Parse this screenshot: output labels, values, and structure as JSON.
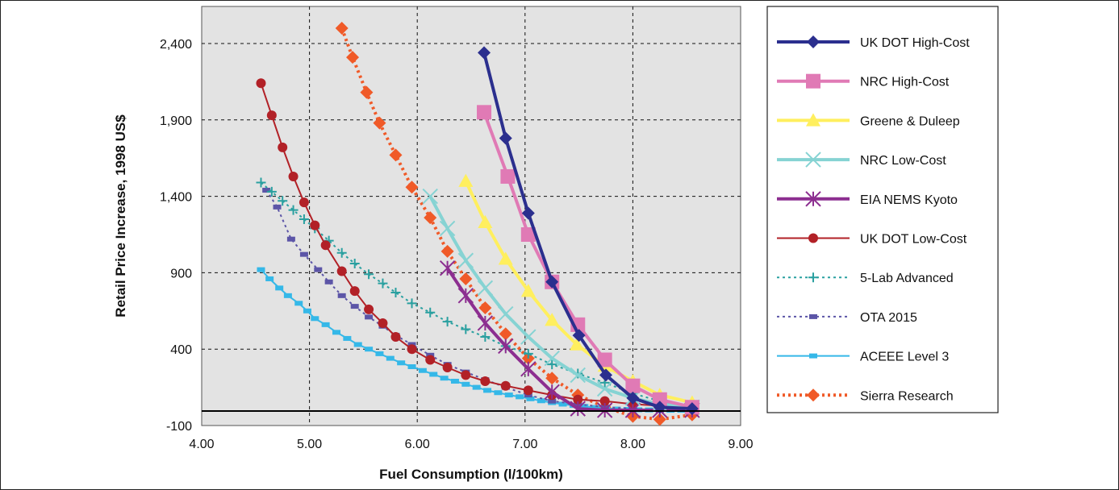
{
  "chart_data": {
    "type": "line",
    "title": "",
    "xlabel": "Fuel Consumption (l/100km)",
    "ylabel": "Retail Price Increase, 1998 US$",
    "xlim": [
      4.0,
      9.0
    ],
    "ylim": [
      -100,
      2400
    ],
    "x_ticks": [
      "4.00",
      "5.00",
      "6.00",
      "7.00",
      "8.00",
      "9.00"
    ],
    "y_ticks": [
      "-100",
      "400",
      "900",
      "1,400",
      "1,900",
      "2,400"
    ],
    "x_tick_values": [
      4,
      5,
      6,
      7,
      8,
      9
    ],
    "y_tick_values": [
      -100,
      400,
      900,
      1400,
      1900,
      2400
    ],
    "grid": true,
    "plot_background": "#e3e3e3",
    "legend_position": "right",
    "series": [
      {
        "name": "UK DOT High-Cost",
        "color": "#2b2f8e",
        "marker": "diamond",
        "dash": "solid",
        "x": [
          6.62,
          6.82,
          7.03,
          7.25,
          7.5,
          7.75,
          8.0,
          8.25,
          8.55
        ],
        "y": [
          2340,
          1780,
          1290,
          840,
          490,
          230,
          80,
          20,
          10
        ]
      },
      {
        "name": "NRC High-Cost",
        "color": "#e07ab5",
        "marker": "square",
        "dash": "solid",
        "x": [
          6.62,
          6.84,
          7.03,
          7.25,
          7.49,
          7.74,
          8.0,
          8.25,
          8.55
        ],
        "y": [
          1950,
          1530,
          1150,
          840,
          560,
          330,
          160,
          70,
          20
        ]
      },
      {
        "name": "Greene & Duleep",
        "color": "#ffef5e",
        "marker": "triangle",
        "dash": "solid",
        "x": [
          6.45,
          6.63,
          6.82,
          7.03,
          7.25,
          7.48,
          7.74,
          8.0,
          8.25,
          8.55
        ],
        "y": [
          1500,
          1230,
          990,
          780,
          590,
          430,
          290,
          190,
          100,
          50
        ]
      },
      {
        "name": "NRC Low-Cost",
        "color": "#86d3d3",
        "marker": "x",
        "dash": "solid",
        "x": [
          6.12,
          6.28,
          6.45,
          6.63,
          6.82,
          7.03,
          7.25,
          7.49,
          7.74,
          8.0,
          8.25,
          8.55
        ],
        "y": [
          1400,
          1190,
          980,
          800,
          630,
          480,
          340,
          230,
          140,
          80,
          40,
          20
        ]
      },
      {
        "name": "EIA NEMS Kyoto",
        "color": "#8c2e90",
        "marker": "asterisk",
        "dash": "solid",
        "x": [
          6.28,
          6.45,
          6.63,
          6.82,
          7.03,
          7.25,
          7.49,
          7.74,
          8.0,
          8.25,
          8.55
        ],
        "y": [
          930,
          750,
          570,
          420,
          270,
          120,
          10,
          0,
          0,
          0,
          0
        ]
      },
      {
        "name": "UK DOT Low-Cost",
        "color": "#b22127",
        "marker": "circle",
        "dash": "solid",
        "x": [
          4.55,
          4.65,
          4.75,
          4.85,
          4.95,
          5.05,
          5.15,
          5.3,
          5.42,
          5.55,
          5.68,
          5.8,
          5.95,
          6.12,
          6.28,
          6.45,
          6.63,
          6.82,
          7.03,
          7.25,
          7.49,
          7.74,
          8.0,
          8.25,
          8.55
        ],
        "y": [
          2140,
          1930,
          1720,
          1530,
          1360,
          1210,
          1080,
          910,
          780,
          660,
          570,
          480,
          400,
          330,
          280,
          230,
          190,
          160,
          130,
          100,
          70,
          60,
          40,
          30,
          20
        ]
      },
      {
        "name": "5-Lab Advanced",
        "color": "#2aa0a0",
        "marker": "plus",
        "dash": "dot",
        "x": [
          4.55,
          4.65,
          4.75,
          4.85,
          4.95,
          5.05,
          5.18,
          5.3,
          5.42,
          5.55,
          5.68,
          5.8,
          5.95,
          6.12,
          6.28,
          6.45,
          6.63,
          6.82,
          7.03,
          7.25,
          7.49,
          7.74,
          8.0,
          8.25,
          8.55
        ],
        "y": [
          1490,
          1430,
          1370,
          1310,
          1250,
          1190,
          1110,
          1030,
          960,
          890,
          830,
          770,
          700,
          640,
          580,
          530,
          480,
          420,
          370,
          300,
          240,
          180,
          110,
          60,
          10
        ]
      },
      {
        "name": "OTA 2015",
        "color": "#5c55a7",
        "marker": "smallsquare",
        "dash": "dot",
        "x": [
          4.6,
          4.7,
          4.83,
          4.95,
          5.08,
          5.18,
          5.3,
          5.42,
          5.55,
          5.68,
          5.8,
          5.95,
          6.12,
          6.28,
          6.45,
          6.63,
          6.82,
          7.03,
          7.25,
          7.49,
          7.74,
          8.0,
          8.25,
          8.55
        ],
        "y": [
          1440,
          1330,
          1120,
          1020,
          920,
          840,
          750,
          680,
          610,
          550,
          490,
          430,
          360,
          300,
          250,
          200,
          150,
          100,
          60,
          40,
          20,
          10,
          0,
          0
        ]
      },
      {
        "name": "ACEEE Level 3",
        "color": "#35b8e8",
        "marker": "smallsquare",
        "dash": "solid",
        "x": [
          4.55,
          4.63,
          4.72,
          4.8,
          4.9,
          4.98,
          5.05,
          5.15,
          5.25,
          5.35,
          5.45,
          5.55,
          5.65,
          5.75,
          5.85,
          5.95,
          6.05,
          6.15,
          6.25,
          6.35,
          6.45,
          6.55,
          6.65,
          6.75,
          6.85,
          6.95,
          7.05,
          7.15,
          7.25,
          7.35,
          7.45,
          7.55,
          7.65,
          7.75,
          7.85,
          7.95,
          8.05,
          8.15,
          8.25,
          8.35,
          8.45,
          8.55
        ],
        "y": [
          920,
          860,
          800,
          750,
          700,
          650,
          600,
          560,
          510,
          470,
          430,
          400,
          370,
          340,
          310,
          285,
          260,
          235,
          210,
          190,
          170,
          150,
          130,
          115,
          100,
          88,
          75,
          62,
          50,
          40,
          32,
          25,
          18,
          12,
          8,
          5,
          3,
          2,
          1,
          0,
          0,
          0
        ]
      },
      {
        "name": "Sierra Research",
        "color": "#f05a28",
        "marker": "diamond",
        "dash": "dot",
        "x": [
          5.3,
          5.4,
          5.53,
          5.65,
          5.8,
          5.95,
          6.12,
          6.28,
          6.45,
          6.63,
          6.82,
          7.03,
          7.25,
          7.49,
          7.74,
          8.0,
          8.25,
          8.55
        ],
        "y": [
          2500,
          2310,
          2080,
          1880,
          1670,
          1460,
          1260,
          1040,
          860,
          670,
          500,
          340,
          210,
          100,
          20,
          -40,
          -60,
          -30
        ]
      }
    ]
  }
}
